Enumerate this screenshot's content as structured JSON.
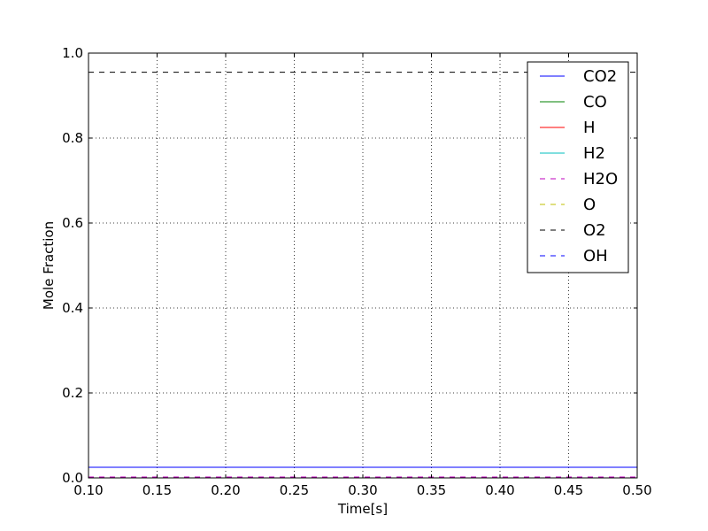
{
  "chart_data": {
    "type": "line",
    "title": "",
    "xlabel": "Time[s]",
    "ylabel": "Mole Fraction",
    "xlim": [
      0.1,
      0.5
    ],
    "ylim": [
      0.0,
      1.0
    ],
    "xticks": [
      "0.10",
      "0.15",
      "0.20",
      "0.25",
      "0.30",
      "0.35",
      "0.40",
      "0.45",
      "0.50"
    ],
    "yticks": [
      "0.0",
      "0.2",
      "0.4",
      "0.6",
      "0.8",
      "1.0"
    ],
    "grid": true,
    "legend_position": "top-right",
    "x": [
      0.1,
      0.5
    ],
    "series": [
      {
        "name": "CO2",
        "color": "#0000ff",
        "dash": "solid",
        "values": [
          0.025,
          0.025
        ]
      },
      {
        "name": "CO",
        "color": "#008000",
        "dash": "solid",
        "values": [
          0.0,
          0.0
        ]
      },
      {
        "name": "H",
        "color": "#ff0000",
        "dash": "solid",
        "values": [
          0.0,
          0.0
        ]
      },
      {
        "name": "H2",
        "color": "#00bfbf",
        "dash": "solid",
        "values": [
          0.0,
          0.0
        ]
      },
      {
        "name": "H2O",
        "color": "#bf00bf",
        "dash": "dashed",
        "values": [
          0.002,
          0.002
        ]
      },
      {
        "name": "O",
        "color": "#bfbf00",
        "dash": "dashed",
        "values": [
          0.0,
          0.0
        ]
      },
      {
        "name": "O2",
        "color": "#000000",
        "dash": "dashed",
        "values": [
          0.955,
          0.955
        ]
      },
      {
        "name": "OH",
        "color": "#0000ff",
        "dash": "dashed",
        "values": [
          0.0,
          0.0
        ]
      }
    ]
  }
}
